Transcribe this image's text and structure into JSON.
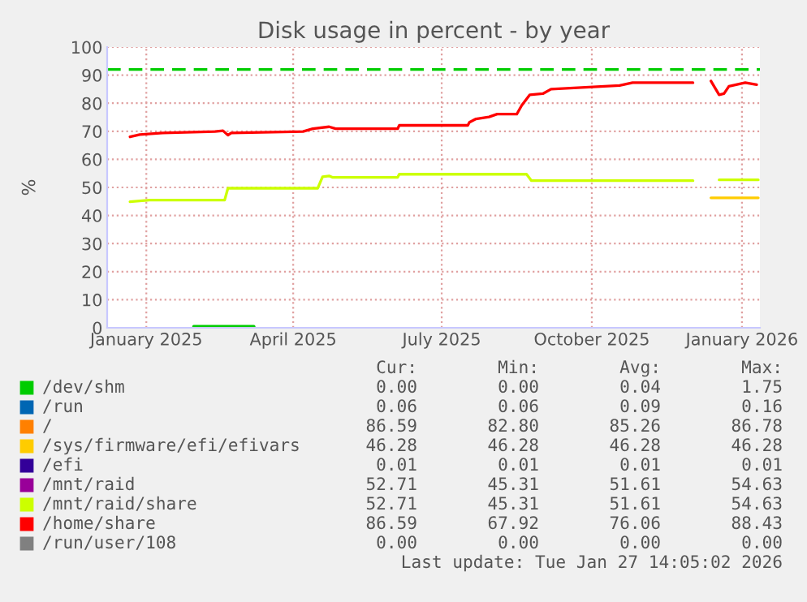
{
  "chart_data": {
    "type": "line",
    "title": "Disk usage in percent - by year",
    "ylabel": "%",
    "xlim": [
      "2024-12-23",
      "2026-01-27"
    ],
    "xticks": [
      {
        "value": "2025-01-16",
        "label": "January 2025"
      },
      {
        "value": "2025-04-16",
        "label": "April 2025"
      },
      {
        "value": "2025-07-16",
        "label": "July 2025"
      },
      {
        "value": "2025-10-16",
        "label": "October 2025"
      },
      {
        "value": "2026-01-16",
        "label": "January 2026"
      }
    ],
    "ylim": [
      0,
      100
    ],
    "yticks": [
      0,
      10,
      20,
      30,
      40,
      50,
      60,
      70,
      80,
      90,
      100
    ],
    "grid": true,
    "legend": "bottom",
    "ref_lines": [
      {
        "axis": "y",
        "value": 92,
        "color": "#00cc00",
        "line_style": "dashed"
      }
    ],
    "series": [
      {
        "name": "/dev/shm",
        "color": "#00cc00",
        "x": [
          "2025-02-14",
          "2025-03-23"
        ],
        "values": [
          0.5,
          0.5
        ]
      },
      {
        "name": "/run",
        "color": "#0066b3"
      },
      {
        "name": "/",
        "color": "#ff8000"
      },
      {
        "name": "/sys/firmware/efi/efivars",
        "color": "#ffcc00",
        "x": [
          "2025-12-28",
          "2026-01-26"
        ],
        "values": [
          46.3,
          46.3
        ]
      },
      {
        "name": "/efi",
        "color": "#330099"
      },
      {
        "name": "/mnt/raid",
        "color": "#990099"
      },
      {
        "name": "/mnt/raid/share",
        "color": "#ccff00",
        "x": [
          "2025-01-06",
          "2025-01-18",
          "2025-03-05",
          "2025-03-07",
          "2025-05-01",
          "2025-05-04",
          "2025-05-08",
          "2025-05-10",
          "2025-06-19",
          "2025-06-20",
          "2025-09-06",
          "2025-09-09",
          "2025-12-17",
          "2025-12-22",
          "2026-01-02",
          "2026-01-26"
        ],
        "values": [
          44.9,
          45.5,
          45.5,
          49.7,
          49.7,
          53.8,
          54.1,
          53.6,
          53.6,
          54.7,
          54.7,
          52.4,
          52.4,
          null,
          52.7,
          52.7
        ]
      },
      {
        "name": "/home/share",
        "color": "#ff0000",
        "x": [
          "2025-01-06",
          "2025-01-12",
          "2025-01-26",
          "2025-02-27",
          "2025-03-04",
          "2025-03-07",
          "2025-03-09",
          "2025-04-22",
          "2025-04-28",
          "2025-05-08",
          "2025-05-12",
          "2025-06-19",
          "2025-06-20",
          "2025-08-01",
          "2025-08-02",
          "2025-08-06",
          "2025-08-14",
          "2025-08-19",
          "2025-08-31",
          "2025-09-03",
          "2025-09-08",
          "2025-09-16",
          "2025-09-21",
          "2025-11-02",
          "2025-11-10",
          "2025-12-17",
          "2025-12-22",
          "2025-12-28",
          "2026-01-02",
          "2026-01-05",
          "2026-01-08",
          "2026-01-18",
          "2026-01-25"
        ],
        "values": [
          68.0,
          68.8,
          69.4,
          69.9,
          70.2,
          68.6,
          69.4,
          69.9,
          70.9,
          71.6,
          70.9,
          70.9,
          72.1,
          72.1,
          73.2,
          74.4,
          75.1,
          76.1,
          76.1,
          79.2,
          83.0,
          83.4,
          85.0,
          86.3,
          87.3,
          87.3,
          null,
          87.9,
          83.0,
          83.4,
          86.0,
          87.3,
          86.6
        ]
      },
      {
        "name": "/run/user/108",
        "color": "#808080"
      }
    ],
    "annotations": [
      "Cur:",
      "Min:",
      "Avg:",
      "Max:",
      "0.00",
      "0.00",
      "0.04",
      "1.75",
      "0.06",
      "0.06",
      "0.09",
      "0.16",
      "86.59",
      "82.80",
      "85.26",
      "86.78",
      "46.28",
      "46.28",
      "46.28",
      "46.28",
      "0.01",
      "0.01",
      "0.01",
      "0.01",
      "52.71",
      "45.31",
      "51.61",
      "54.63",
      "52.71",
      "45.31",
      "51.61",
      "54.63",
      "86.59",
      "67.92",
      "76.06",
      "88.43",
      "0.00",
      "0.00",
      "0.00",
      "0.00",
      "Last update: Tue Jan 27 14:05:02 2026"
    ]
  }
}
